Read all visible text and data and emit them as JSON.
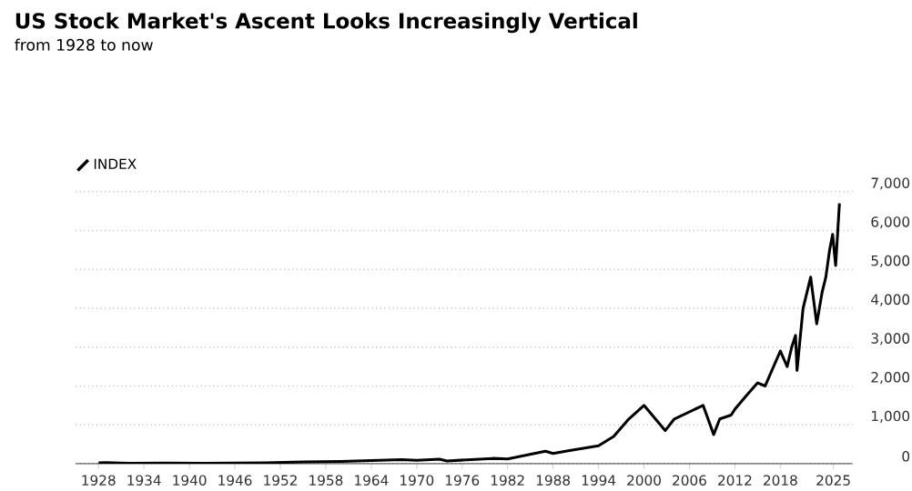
{
  "chart_data": {
    "type": "line",
    "title": "US Stock Market's Ascent Looks Increasingly Vertical",
    "subtitle": "from 1928 to now",
    "x": [
      1928,
      1929,
      1932,
      1937,
      1942,
      1946,
      1950,
      1955,
      1960,
      1966,
      1968,
      1970,
      1973,
      1974,
      1980,
      1982,
      1987,
      1988,
      1990,
      1994,
      1996,
      1998,
      2000,
      2002.8,
      2004,
      2007.8,
      2009.2,
      2010,
      2011.5,
      2012,
      2013.5,
      2015,
      2016,
      2018,
      2018.9,
      2019.5,
      2020,
      2020.2,
      2021,
      2022,
      2022.8,
      2023.5,
      2024,
      2024.5,
      2024.9,
      2025.3,
      2025.8
    ],
    "series": [
      {
        "name": "INDEX",
        "color": "#000000",
        "values": [
          20,
          25,
          7,
          15,
          9,
          17,
          20,
          45,
          58,
          90,
          105,
          85,
          115,
          70,
          135,
          120,
          320,
          260,
          330,
          460,
          700,
          1150,
          1500,
          850,
          1150,
          1500,
          750,
          1150,
          1250,
          1400,
          1750,
          2080,
          2000,
          2900,
          2500,
          3000,
          3300,
          2400,
          4000,
          4800,
          3600,
          4400,
          4800,
          5500,
          5900,
          5100,
          6700
        ]
      }
    ],
    "xlim": [
      1925,
      2027.5
    ],
    "ylim": [
      0,
      7000
    ],
    "xticks": [
      1928,
      1934,
      1940,
      1946,
      1952,
      1958,
      1964,
      1970,
      1976,
      1982,
      1988,
      1994,
      2000,
      2006,
      2012,
      2018,
      2025
    ],
    "yticks": [
      0,
      {
        "value": 1000,
        "label": "1,000"
      },
      {
        "value": 2000,
        "label": "2,000"
      },
      {
        "value": 3000,
        "label": "3,000"
      },
      {
        "value": 4000,
        "label": "4,000"
      },
      {
        "value": 5000,
        "label": "5,000"
      },
      {
        "value": 6000,
        "label": "6,000"
      },
      {
        "value": 7000,
        "label": "7,000"
      }
    ],
    "grid": "y",
    "legend": "top left",
    "line_style": "solid"
  }
}
